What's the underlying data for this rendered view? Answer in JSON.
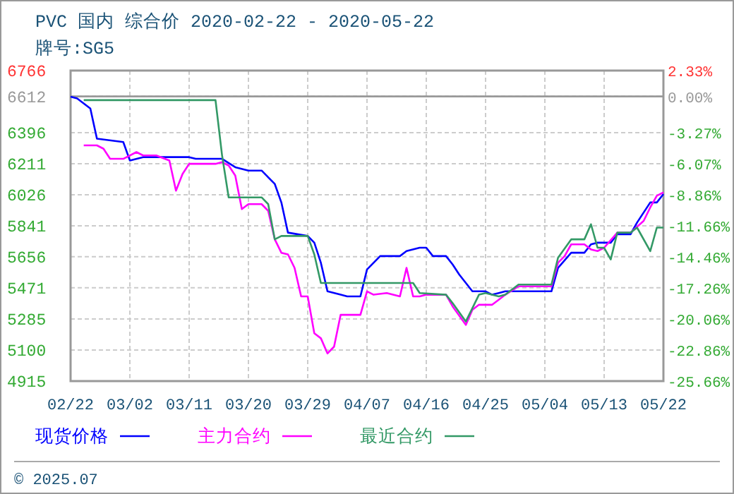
{
  "chart_data": {
    "type": "line",
    "title": "PVC 国内 综合价 2020-02-22 - 2020-05-22",
    "subtitle": "牌号:SG5",
    "xlim": [
      "2020-02-22",
      "2020-05-22"
    ],
    "xticks": [
      {
        "value": "2020-02-22",
        "label": "02/22"
      },
      {
        "value": "2020-03-02",
        "label": "03/02"
      },
      {
        "value": "2020-03-11",
        "label": "03/11"
      },
      {
        "value": "2020-03-20",
        "label": "03/20"
      },
      {
        "value": "2020-03-29",
        "label": "03/29"
      },
      {
        "value": "2020-04-07",
        "label": "04/07"
      },
      {
        "value": "2020-04-16",
        "label": "04/16"
      },
      {
        "value": "2020-04-25",
        "label": "04/25"
      },
      {
        "value": "2020-05-04",
        "label": "05/04"
      },
      {
        "value": "2020-05-13",
        "label": "05/13"
      },
      {
        "value": "2020-05-22",
        "label": "05/22"
      }
    ],
    "ylim": [
      4915,
      6766
    ],
    "yticks": [
      4915,
      5100,
      5285,
      5471,
      5656,
      5841,
      6026,
      6211,
      6396,
      6612,
      6766
    ],
    "y2lim": [
      -25.66,
      2.33
    ],
    "y2ticks": [
      {
        "value": -25.66,
        "label": "-25.66%"
      },
      {
        "value": -22.86,
        "label": "-22.86%"
      },
      {
        "value": -20.06,
        "label": "-20.06%"
      },
      {
        "value": -17.26,
        "label": "-17.26%"
      },
      {
        "value": -14.46,
        "label": "-14.46%"
      },
      {
        "value": -11.66,
        "label": "-11.66%"
      },
      {
        "value": -8.86,
        "label": "-8.86%"
      },
      {
        "value": -6.07,
        "label": "-6.07%"
      },
      {
        "value": -3.27,
        "label": "-3.27%"
      },
      {
        "value": 0,
        "label": "0.00%"
      },
      {
        "value": 2.33,
        "label": "2.33%"
      }
    ],
    "ref_lines": [
      {
        "axis": "y",
        "value": 6612,
        "color": "#999999"
      }
    ],
    "grid": true,
    "legend": "bottom",
    "line_style": "solid",
    "annotations": [
      "© 2025.07"
    ],
    "series": [
      {
        "name": "现货价格",
        "color": "#0000ff",
        "x": [
          "2020-02-22",
          "2020-02-23",
          "2020-02-25",
          "2020-02-26",
          "2020-03-01",
          "2020-03-02",
          "2020-03-04",
          "2020-03-11",
          "2020-03-12",
          "2020-03-16",
          "2020-03-18",
          "2020-03-20",
          "2020-03-22",
          "2020-03-24",
          "2020-03-25",
          "2020-03-26",
          "2020-03-29",
          "2020-03-30",
          "2020-03-31",
          "2020-04-01",
          "2020-04-03",
          "2020-04-04",
          "2020-04-06",
          "2020-04-07",
          "2020-04-09",
          "2020-04-12",
          "2020-04-13",
          "2020-04-15",
          "2020-04-16",
          "2020-04-17",
          "2020-04-19",
          "2020-04-20",
          "2020-04-21",
          "2020-04-23",
          "2020-04-25",
          "2020-04-26",
          "2020-04-27",
          "2020-04-28",
          "2020-05-05",
          "2020-05-06",
          "2020-05-08",
          "2020-05-10",
          "2020-05-11",
          "2020-05-12",
          "2020-05-14",
          "2020-05-15",
          "2020-05-17",
          "2020-05-18",
          "2020-05-20",
          "2020-05-21",
          "2020-05-22"
        ],
        "values": [
          6610,
          6600,
          6540,
          6360,
          6340,
          6230,
          6250,
          6250,
          6240,
          6240,
          6190,
          6170,
          6170,
          6090,
          5980,
          5800,
          5780,
          5740,
          5620,
          5450,
          5430,
          5420,
          5420,
          5580,
          5660,
          5660,
          5690,
          5710,
          5710,
          5660,
          5660,
          5610,
          5550,
          5450,
          5450,
          5430,
          5440,
          5450,
          5450,
          5590,
          5680,
          5680,
          5730,
          5740,
          5740,
          5790,
          5790,
          5860,
          5980,
          5980,
          6030
        ]
      },
      {
        "name": "主力合约",
        "color": "#ff00ff",
        "x": [
          "2020-02-24",
          "2020-02-26",
          "2020-02-27",
          "2020-02-28",
          "2020-03-01",
          "2020-03-03",
          "2020-03-04",
          "2020-03-06",
          "2020-03-08",
          "2020-03-09",
          "2020-03-10",
          "2020-03-11",
          "2020-03-15",
          "2020-03-16",
          "2020-03-17",
          "2020-03-18",
          "2020-03-19",
          "2020-03-20",
          "2020-03-22",
          "2020-03-23",
          "2020-03-24",
          "2020-03-25",
          "2020-03-26",
          "2020-03-27",
          "2020-03-28",
          "2020-03-29",
          "2020-03-30",
          "2020-03-31",
          "2020-04-01",
          "2020-04-02",
          "2020-04-03",
          "2020-04-06",
          "2020-04-07",
          "2020-04-08",
          "2020-04-10",
          "2020-04-12",
          "2020-04-13",
          "2020-04-14",
          "2020-04-15",
          "2020-04-16",
          "2020-04-19",
          "2020-04-20",
          "2020-04-22",
          "2020-04-23",
          "2020-04-24",
          "2020-04-26",
          "2020-04-27",
          "2020-04-28",
          "2020-04-30",
          "2020-05-05",
          "2020-05-06",
          "2020-05-07",
          "2020-05-08",
          "2020-05-10",
          "2020-05-11",
          "2020-05-12",
          "2020-05-13",
          "2020-05-15",
          "2020-05-17",
          "2020-05-19",
          "2020-05-20",
          "2020-05-21",
          "2020-05-22"
        ],
        "values": [
          6320,
          6320,
          6300,
          6240,
          6240,
          6280,
          6260,
          6260,
          6230,
          6050,
          6150,
          6210,
          6210,
          6220,
          6200,
          6140,
          5940,
          5970,
          5970,
          5930,
          5760,
          5680,
          5670,
          5590,
          5420,
          5420,
          5200,
          5170,
          5080,
          5120,
          5310,
          5310,
          5450,
          5430,
          5440,
          5420,
          5590,
          5420,
          5420,
          5430,
          5430,
          5360,
          5250,
          5340,
          5370,
          5370,
          5400,
          5430,
          5480,
          5480,
          5620,
          5660,
          5730,
          5730,
          5700,
          5690,
          5710,
          5800,
          5800,
          5870,
          5950,
          6020,
          6040
        ]
      },
      {
        "name": "最近合约",
        "color": "#339966",
        "x": [
          "2020-02-24",
          "2020-03-15",
          "2020-03-16",
          "2020-03-17",
          "2020-03-22",
          "2020-03-23",
          "2020-03-24",
          "2020-03-25",
          "2020-03-29",
          "2020-03-30",
          "2020-03-31",
          "2020-04-14",
          "2020-04-15",
          "2020-04-19",
          "2020-04-20",
          "2020-04-22",
          "2020-04-23",
          "2020-04-24",
          "2020-04-25",
          "2020-04-27",
          "2020-04-28",
          "2020-04-30",
          "2020-05-05",
          "2020-05-06",
          "2020-05-08",
          "2020-05-10",
          "2020-05-11",
          "2020-05-12",
          "2020-05-13",
          "2020-05-14",
          "2020-05-15",
          "2020-05-17",
          "2020-05-18",
          "2020-05-20",
          "2020-05-21",
          "2020-05-22"
        ],
        "values": [
          6590,
          6590,
          6260,
          6010,
          6010,
          5970,
          5760,
          5780,
          5780,
          5670,
          5500,
          5500,
          5440,
          5430,
          5380,
          5270,
          5350,
          5430,
          5440,
          5420,
          5430,
          5490,
          5490,
          5650,
          5760,
          5760,
          5850,
          5710,
          5710,
          5640,
          5800,
          5800,
          5830,
          5690,
          5830,
          5830
        ]
      }
    ]
  }
}
